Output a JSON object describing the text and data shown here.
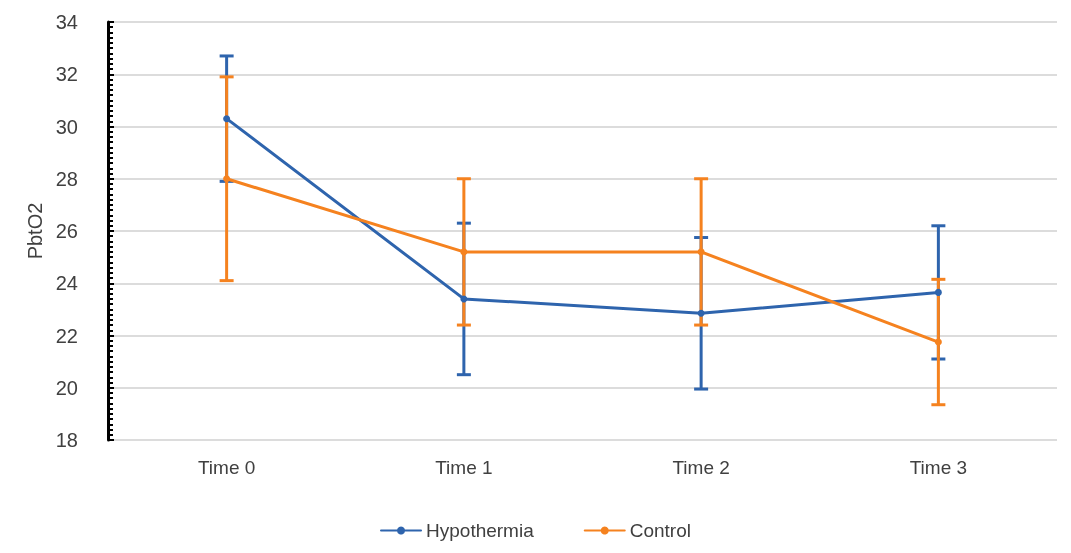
{
  "chart_data": {
    "type": "line",
    "ylabel": "PbtO2",
    "categories": [
      "Time 0",
      "Time 1",
      "Time 2",
      "Time 3"
    ],
    "series": [
      {
        "name": "Hypothermia",
        "color": "#2e64ad",
        "values": [
          30.3,
          23.4,
          22.85,
          23.65
        ],
        "errors": [
          2.4,
          2.9,
          2.9,
          2.55
        ]
      },
      {
        "name": "Control",
        "color": "#f5821f",
        "values": [
          28.0,
          25.2,
          25.2,
          21.75
        ],
        "errors": [
          3.9,
          2.8,
          2.8,
          2.4
        ]
      }
    ],
    "ylim": [
      18,
      34
    ],
    "yticks": [
      18,
      20,
      22,
      24,
      26,
      28,
      30,
      32,
      34
    ],
    "grid": "y",
    "legend": "bottom",
    "marker": "circle",
    "line_style": "solid"
  }
}
